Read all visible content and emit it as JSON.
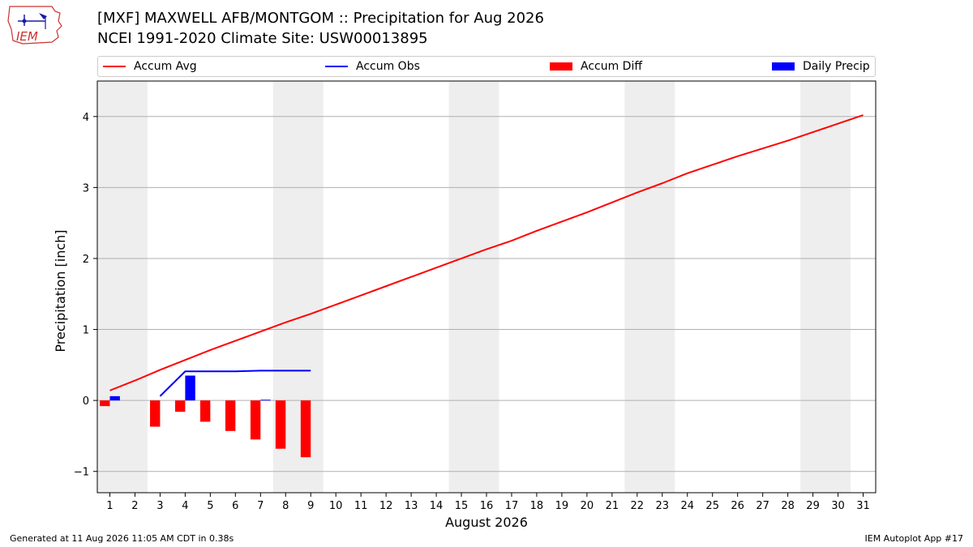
{
  "logo": {
    "text": "IEM"
  },
  "header": {
    "title_line1": "[MXF] MAXWELL AFB/MONTGOM :: Precipitation for Aug 2026",
    "title_line2": "NCEI 1991-2020 Climate Site: USW00013895"
  },
  "legend": {
    "accum_avg": "Accum Avg",
    "accum_obs": "Accum Obs",
    "accum_diff": "Accum Diff",
    "daily_precip": "Daily Precip"
  },
  "footer": {
    "left": "Generated at 11 Aug 2026 11:05 AM CDT in 0.38s",
    "right": "IEM Autoplot App #17"
  },
  "colors": {
    "accum_avg": "#ff0000",
    "accum_obs": "#0000ff",
    "accum_diff": "#ff0000",
    "daily_precip": "#0000ff",
    "weekend_band": "#eeeeee",
    "grid": "#b0b0b0"
  },
  "chart_data": {
    "type": "line",
    "xlabel": "August 2026",
    "ylabel": "Precipitation [inch]",
    "xlim": [
      0.5,
      31.5
    ],
    "ylim": [
      -1.3,
      4.5
    ],
    "x_ticks": [
      1,
      2,
      3,
      4,
      5,
      6,
      7,
      8,
      9,
      10,
      11,
      12,
      13,
      14,
      15,
      16,
      17,
      18,
      19,
      20,
      21,
      22,
      23,
      24,
      25,
      26,
      27,
      28,
      29,
      30,
      31
    ],
    "y_ticks": [
      -1,
      0,
      1,
      2,
      3,
      4
    ],
    "y_tick_labels": [
      "−1",
      "0",
      "1",
      "2",
      "3",
      "4"
    ],
    "grid": "y",
    "shaded_day_ranges": [
      [
        0.5,
        2.5
      ],
      [
        7.5,
        9.5
      ],
      [
        14.5,
        16.5
      ],
      [
        21.5,
        23.5
      ],
      [
        28.5,
        30.5
      ]
    ],
    "series": [
      {
        "name": "Accum Avg",
        "kind": "line",
        "color": "#ff0000",
        "x": [
          1,
          2,
          3,
          4,
          5,
          6,
          7,
          8,
          9,
          10,
          11,
          12,
          13,
          14,
          15,
          16,
          17,
          18,
          19,
          20,
          21,
          22,
          23,
          24,
          25,
          26,
          27,
          28,
          29,
          30,
          31
        ],
        "values": [
          0.14,
          0.28,
          0.43,
          0.57,
          0.71,
          0.84,
          0.97,
          1.1,
          1.22,
          1.35,
          1.48,
          1.61,
          1.74,
          1.87,
          2.0,
          2.13,
          2.25,
          2.39,
          2.52,
          2.65,
          2.79,
          2.93,
          3.06,
          3.2,
          3.32,
          3.44,
          3.55,
          3.66,
          3.78,
          3.9,
          4.02
        ]
      },
      {
        "name": "Accum Obs",
        "kind": "line",
        "color": "#0000ff",
        "x": [
          3,
          4,
          5,
          6,
          7,
          8,
          9
        ],
        "values": [
          0.06,
          0.41,
          0.41,
          0.41,
          0.42,
          0.42,
          0.42
        ]
      },
      {
        "name": "Accum Diff",
        "kind": "bar",
        "color": "#ff0000",
        "offset": -0.2,
        "x": [
          1,
          3,
          4,
          5,
          6,
          7,
          8,
          9
        ],
        "values": [
          -0.08,
          -0.37,
          -0.16,
          -0.3,
          -0.43,
          -0.55,
          -0.68,
          -0.8
        ]
      },
      {
        "name": "Daily Precip",
        "kind": "bar",
        "color": "#0000ff",
        "offset": 0.2,
        "x": [
          1,
          4,
          7
        ],
        "values": [
          0.06,
          0.35,
          0.01
        ]
      }
    ]
  }
}
